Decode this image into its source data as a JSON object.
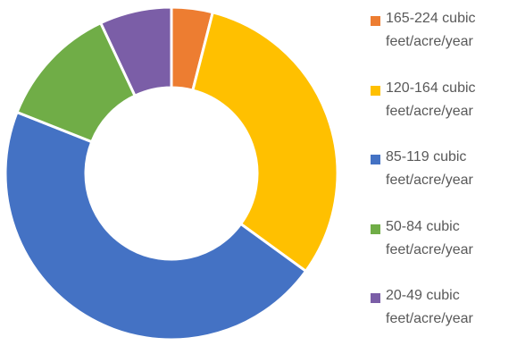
{
  "chart_data": {
    "type": "pie",
    "variant": "donut",
    "title": "",
    "categories": [
      "165-224 cubic\nfeet/acre/year",
      "120-164 cubic\nfeet/acre/year",
      "85-119 cubic\nfeet/acre/year",
      "50-84 cubic\nfeet/acre/year",
      "20-49 cubic\nfeet/acre/year"
    ],
    "values": [
      4,
      31,
      46,
      12,
      7
    ],
    "colors": [
      "#ed7d31",
      "#ffc000",
      "#4472c4",
      "#70ad47",
      "#7b5ea7"
    ],
    "legend_position": "right"
  }
}
